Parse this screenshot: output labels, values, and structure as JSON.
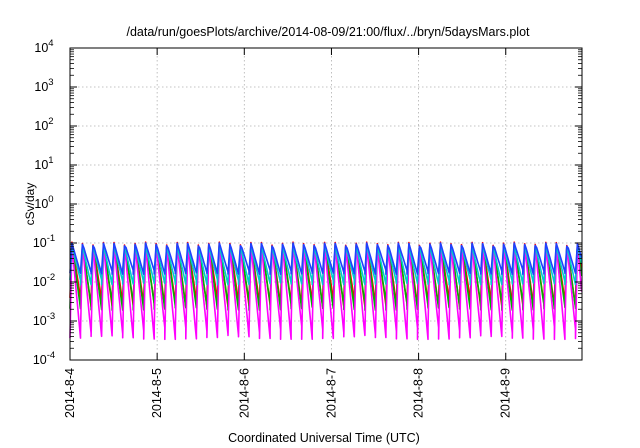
{
  "chart_data": {
    "type": "line",
    "title": "/data/run/goesPlots/archive/2014-08-09/21:00/flux/../bryn/5daysMars.plot",
    "xlabel": "Coordinated Universal Time (UTC)",
    "ylabel": "cSv/day",
    "yscale": "log",
    "ylim": [
      0.0001,
      10000
    ],
    "xlim": [
      "2014-08-04",
      "2014-08-09T21:00"
    ],
    "yticks": [
      {
        "base": "10",
        "exp": "-4"
      },
      {
        "base": "10",
        "exp": "-3"
      },
      {
        "base": "10",
        "exp": "-2"
      },
      {
        "base": "10",
        "exp": "-1"
      },
      {
        "base": "10",
        "exp": "0"
      },
      {
        "base": "10",
        "exp": "1"
      },
      {
        "base": "10",
        "exp": "2"
      },
      {
        "base": "10",
        "exp": "3"
      },
      {
        "base": "10",
        "exp": "4"
      }
    ],
    "xticks": [
      "2014-8-4",
      "2014-8-5",
      "2014-8-6",
      "2014-8-7",
      "2014-8-8",
      "2014-8-9"
    ],
    "grid": true,
    "legend": "none",
    "pattern": {
      "period_hours": 2.9,
      "peak_value": 0.1,
      "trough_value": 0.0005
    },
    "series": [
      {
        "color": "#ff0000",
        "peak": 0.105,
        "trough": 0.003
      },
      {
        "color": "#00b000",
        "peak": 0.095,
        "trough": 0.0025
      },
      {
        "color": "#ff00ff",
        "peak": 0.09,
        "trough": 0.0005
      },
      {
        "color": "#00cccc",
        "peak": 0.085,
        "trough": 0.01
      },
      {
        "color": "#2040ff",
        "peak": 0.1,
        "trough": 0.018
      }
    ]
  }
}
